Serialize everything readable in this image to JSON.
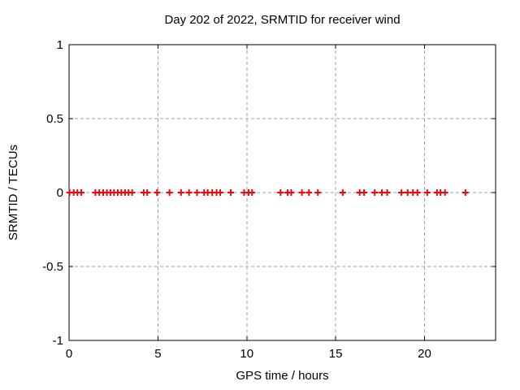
{
  "page": {
    "background": "#ffffff"
  },
  "chart_data": {
    "type": "scatter",
    "title": "Day 202 of 2022, SRMTID for receiver wind",
    "xlabel": "GPS time / hours",
    "ylabel": "SRMTID / TECUs",
    "xlim": [
      0,
      24
    ],
    "ylim": [
      -1,
      1
    ],
    "xticks": [
      0,
      5,
      10,
      15,
      20
    ],
    "xtick_labels": [
      "0",
      "5",
      "10",
      "15",
      "20"
    ],
    "yticks": [
      -1,
      -0.5,
      0,
      0.5,
      1
    ],
    "ytick_labels": [
      "-1",
      "-0.5",
      "0",
      "0.5",
      "1"
    ],
    "grid": true,
    "grid_style": "dashed",
    "grid_color": "#a0a0a0",
    "axis_color": "#000000",
    "legend_position": "none",
    "marker": {
      "style": "plus",
      "color": "#ff0000",
      "size": 9
    },
    "series": [
      {
        "name": "SRMTID",
        "x": [
          0.03,
          0.26,
          0.47,
          0.69,
          1.48,
          1.7,
          1.92,
          2.13,
          2.33,
          2.53,
          2.74,
          2.94,
          3.15,
          3.35,
          3.55,
          4.2,
          4.4,
          4.95,
          5.65,
          6.3,
          6.75,
          7.2,
          7.6,
          7.8,
          8.05,
          8.3,
          8.5,
          9.1,
          9.85,
          10.1,
          10.3,
          11.9,
          12.3,
          12.5,
          13.1,
          13.5,
          14.0,
          15.4,
          16.35,
          16.6,
          17.2,
          17.6,
          17.9,
          18.7,
          19.05,
          19.35,
          19.6,
          20.15,
          20.7,
          20.9,
          21.15,
          22.3
        ],
        "y": [
          0,
          0,
          0,
          0,
          0,
          0,
          0,
          0,
          0,
          0,
          0,
          0,
          0,
          0,
          0,
          0,
          0,
          0,
          0,
          0,
          0,
          0,
          0,
          0,
          0,
          0,
          0,
          0,
          0,
          0,
          0,
          0,
          0,
          0,
          0,
          0,
          0,
          0,
          0,
          0,
          0,
          0,
          0,
          0,
          0,
          0,
          0,
          0,
          0,
          0,
          0,
          0
        ]
      }
    ]
  }
}
